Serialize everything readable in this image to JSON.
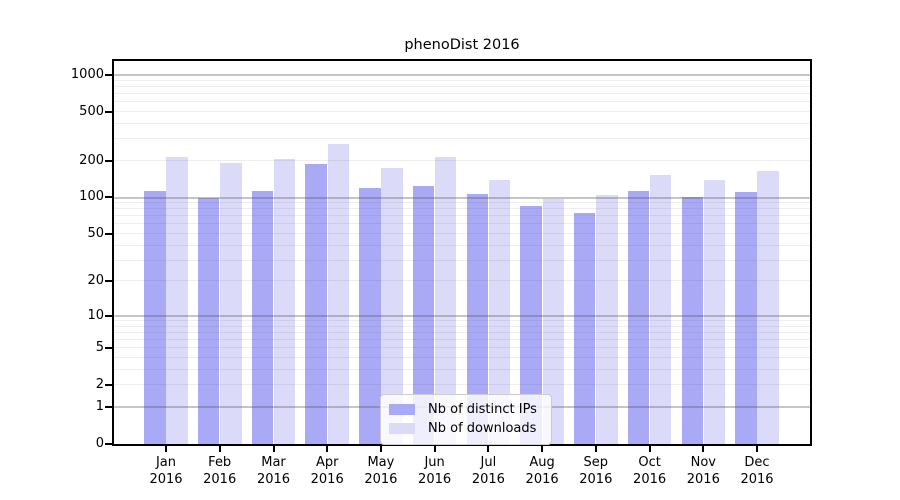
{
  "title": "phenoDist 2016",
  "legend": {
    "items": [
      {
        "label": "Nb of distinct IPs",
        "color": "#a9a9f5"
      },
      {
        "label": "Nb of downloads",
        "color": "#dbdbf9"
      }
    ]
  },
  "chart_data": {
    "type": "bar",
    "title": "phenoDist 2016",
    "categories": [
      "Jan 2016",
      "Feb 2016",
      "Mar 2016",
      "Apr 2016",
      "May 2016",
      "Jun 2016",
      "Jul 2016",
      "Aug 2016",
      "Sep 2016",
      "Oct 2016",
      "Nov 2016",
      "Dec 2016"
    ],
    "series": [
      {
        "name": "Nb of distinct IPs",
        "color": "#a9a9f5",
        "values": [
          113,
          100,
          113,
          188,
          120,
          124,
          107,
          85,
          75,
          113,
          101,
          111
        ]
      },
      {
        "name": "Nb of downloads",
        "color": "#dbdbf9",
        "values": [
          215,
          190,
          207,
          274,
          174,
          214,
          140,
          97,
          105,
          152,
          140,
          165
        ]
      }
    ],
    "xlabel": "",
    "ylabel": "",
    "yscale": "log(value+1)",
    "yticks": [
      1000,
      500,
      200,
      100,
      50,
      20,
      10,
      5,
      2,
      1,
      0
    ],
    "ylim": [
      0,
      1300
    ],
    "grid": "horizontal, log minor + major decade lines",
    "legend_position": "lower center"
  }
}
